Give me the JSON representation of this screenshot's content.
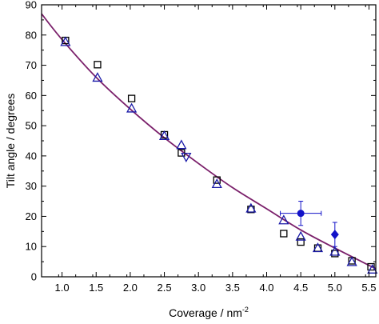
{
  "chart_data": {
    "type": "scatter",
    "title": "",
    "xlabel": "Coverage / nm",
    "xlabel_superscript": "-2",
    "ylabel": "Tilt angle / degrees",
    "xlim": [
      0.7,
      5.6
    ],
    "ylim": [
      0,
      90
    ],
    "x_ticks": [
      "1.0",
      "1.5",
      "2.0",
      "2.5",
      "3.0",
      "3.5",
      "4.0",
      "4.5",
      "5.0",
      "5.5"
    ],
    "y_ticks": [
      "0",
      "10",
      "20",
      "30",
      "40",
      "50",
      "60",
      "70",
      "80",
      "90"
    ],
    "grid": false,
    "legend": "none",
    "colors": {
      "fit_line": "#7a1f6a",
      "squares": "#000000",
      "triangles": "#1a1aa8",
      "filled_points": "#1212c8",
      "axis": "#000000"
    },
    "fit_curve": {
      "x": [
        0.7,
        1.0,
        1.5,
        2.0,
        2.5,
        3.0,
        3.5,
        4.0,
        4.5,
        5.0,
        5.5,
        5.6
      ],
      "y": [
        87,
        78.5,
        66,
        55.5,
        46,
        37.5,
        29.5,
        22.5,
        15.5,
        9.5,
        3.8,
        2.7
      ]
    },
    "series": [
      {
        "marker": "open-square",
        "x": [
          1.05,
          1.52,
          2.02,
          2.5,
          2.75,
          3.27,
          3.77,
          4.25,
          4.5,
          4.75,
          5.0,
          5.25,
          5.53
        ],
        "y": [
          78.2,
          70.2,
          59.0,
          47.0,
          41.0,
          32.0,
          22.3,
          14.3,
          11.5,
          9.5,
          7.7,
          5.3,
          3.3
        ]
      },
      {
        "marker": "open-triangle-up",
        "x": [
          1.05,
          1.52,
          2.02,
          2.5,
          2.75,
          3.27,
          3.77,
          4.25,
          4.5,
          4.75,
          5.0,
          5.25,
          5.55
        ],
        "y": [
          77.6,
          65.8,
          55.6,
          46.5,
          43.5,
          30.6,
          22.5,
          18.6,
          13.2,
          9.4,
          8.2,
          4.8,
          2.3
        ]
      },
      {
        "marker": "open-triangle-down",
        "x": [
          2.82
        ],
        "y": [
          39.8
        ]
      },
      {
        "marker": "filled-circle",
        "x": [
          4.5
        ],
        "y": [
          21.0
        ],
        "x_err": [
          0.3
        ],
        "y_err": [
          4.0
        ]
      },
      {
        "marker": "filled-diamond",
        "x": [
          5.0
        ],
        "y": [
          14.0
        ],
        "y_err": [
          4.0
        ]
      }
    ]
  }
}
